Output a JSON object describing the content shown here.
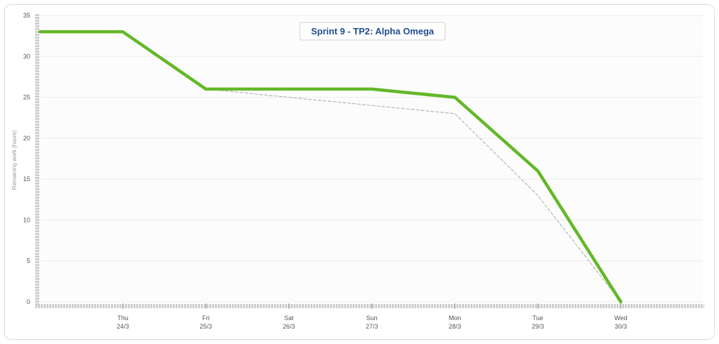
{
  "chart_data": {
    "type": "line",
    "title": "Sprint 9 - TP2: Alpha Omega",
    "ylabel": "Remaining work (hours)",
    "xlabel": "",
    "ylim": [
      0,
      35
    ],
    "yticks": [
      0,
      5,
      10,
      15,
      20,
      25,
      30,
      35
    ],
    "categories": [
      {
        "day": "Thu",
        "date": "24/3"
      },
      {
        "day": "Fri",
        "date": "25/3"
      },
      {
        "day": "Sat",
        "date": "26/3"
      },
      {
        "day": "Sun",
        "date": "27/3"
      },
      {
        "day": "Mon",
        "date": "28/3"
      },
      {
        "day": "Tue",
        "date": "29/3"
      },
      {
        "day": "Wed",
        "date": "30/3"
      }
    ],
    "grid": true,
    "series": [
      {
        "style": "solid",
        "color": "#63b828",
        "x": [
          -1,
          0,
          1,
          2,
          3,
          4,
          5,
          6
        ],
        "values": [
          33,
          33,
          26,
          26,
          26,
          25,
          16,
          0
        ]
      },
      {
        "style": "dashed",
        "color": "#b5b5b5",
        "x": [
          1,
          2,
          3,
          4,
          5,
          6
        ],
        "values": [
          26,
          25,
          24,
          23,
          13,
          0
        ]
      }
    ]
  }
}
